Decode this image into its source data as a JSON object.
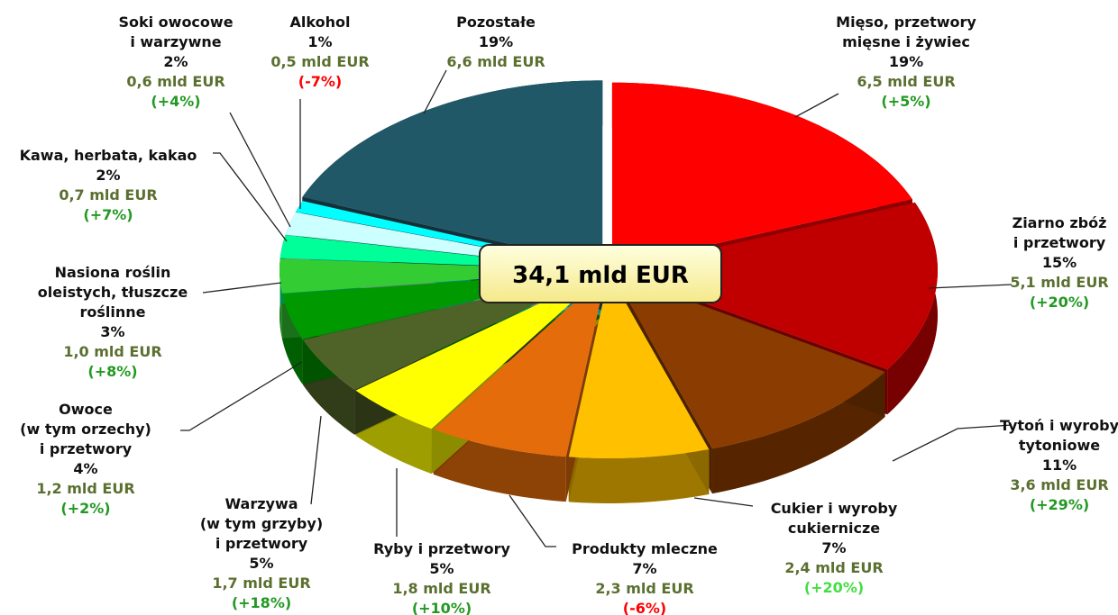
{
  "chart_data": {
    "type": "pie",
    "categories": [
      "Mięso, przetwory\nmięsne i żywiec",
      "Ziarno zbóż\ni przetwory",
      "Tytoń i wyroby\ntytoniowe",
      "Cukier i wyroby\ncukiernicze",
      "Produkty mleczne",
      "Ryby i przetwory",
      "Warzywa\n(w tym grzyby)\ni przetwory",
      "Owoce\n(w tym orzechy)\ni przetwory",
      "Nasiona roślin\noleistych, tłuszcze\nroślinne",
      "Kawa, herbata, kakao",
      "Soki owocowe\ni warzywne",
      "Alkohol",
      "Pozostałe"
    ],
    "values": [
      19,
      15,
      11,
      7,
      7,
      5,
      5,
      4,
      3,
      2,
      2,
      1,
      19
    ],
    "value_labels": [
      "19%",
      "15%",
      "11%",
      "7%",
      "7%",
      "5%",
      "5%",
      "4%",
      "3%",
      "2%",
      "2%",
      "1%",
      "19%"
    ],
    "amount_labels": [
      "6,5 mld EUR",
      "5,1 mld EUR",
      "3,6 mld EUR",
      "2,4 mld EUR",
      "2,3 mld EUR",
      "1,8 mld EUR",
      "1,7 mld EUR",
      "1,2 mld EUR",
      "1,0 mld EUR",
      "0,7 mld EUR",
      "0,6 mld EUR",
      "0,5 mld EUR",
      "6,6 mld EUR"
    ],
    "change_labels": [
      "(+5%)",
      "(+20%)",
      "(+29%)",
      "(+20%)",
      "(-6%)",
      "(+10%)",
      "(+18%)",
      "(+2%)",
      "(+8%)",
      "(+7%)",
      "(+4%)",
      "(-7%)",
      null
    ],
    "change_colors": [
      "#229922",
      "#229922",
      "#229922",
      "#44dd44",
      "#ff0000",
      "#229922",
      "#229922",
      "#229922",
      "#229922",
      "#229922",
      "#229922",
      "#ff0000",
      null
    ],
    "colors": [
      "#ff0000",
      "#c00000",
      "#8b3c00",
      "#ffc000",
      "#e46c0a",
      "#ffff00",
      "#4f6228",
      "#009900",
      "#33cc33",
      "#00ff99",
      "#ccffff",
      "#00ffff",
      "#215868"
    ],
    "amount_color": "#5b7030",
    "total_label": "34,1 mld EUR"
  }
}
